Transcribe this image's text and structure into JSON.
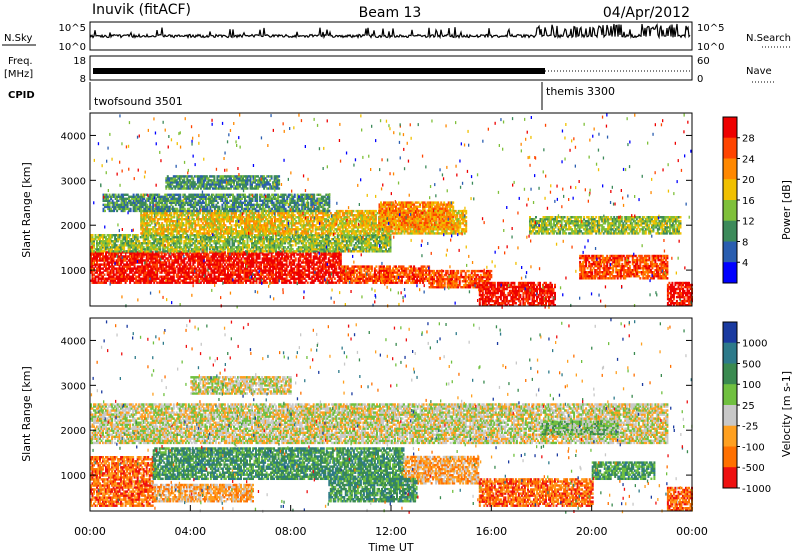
{
  "header": {
    "station": "Inuvik (fitACF)",
    "beam": "Beam 13",
    "date": "04/Apr/2012"
  },
  "noise_panel": {
    "left_label": "N.Sky",
    "right_label": "N.Search",
    "left_ticks": [
      "10^5",
      "10^0"
    ],
    "right_ticks": [
      "10^5",
      "10^0"
    ]
  },
  "freq_panel": {
    "left_label_line1": "Freq.",
    "left_label_line2": "[MHz]",
    "right_label": "Nave",
    "left_ticks": [
      "18",
      "8"
    ],
    "right_ticks": [
      "60",
      "0"
    ]
  },
  "cpid_panel": {
    "label": "CPID",
    "modes": [
      {
        "name": "twofsound 3501",
        "start_hour": 0
      },
      {
        "name": "themis 3300",
        "start_hour": 18
      }
    ]
  },
  "chart_data": [
    {
      "type": "heatmap",
      "name": "power",
      "xlabel": "",
      "ylabel": "Slant Range [km]",
      "xlim": [
        0,
        24
      ],
      "ylim": [
        200,
        4500
      ],
      "yticks": [
        "1000",
        "2000",
        "3000",
        "4000"
      ],
      "colorbar": {
        "label": "Power [dB]",
        "ticks": [
          "4",
          "8",
          "12",
          "16",
          "20",
          "24",
          "28"
        ],
        "colors": [
          "#0000ff",
          "#2a5eb0",
          "#3c8a5a",
          "#7fc03a",
          "#f0c000",
          "#ff8800",
          "#ff4400",
          "#ee0000"
        ]
      },
      "bands": [
        {
          "x0": 0.0,
          "x1": 10.0,
          "r0": 700,
          "r1": 1400,
          "level": 7
        },
        {
          "x0": 10.0,
          "x1": 13.5,
          "r0": 700,
          "r1": 1100,
          "level": 6
        },
        {
          "x0": 13.5,
          "x1": 16.0,
          "r0": 600,
          "r1": 1000,
          "level": 6
        },
        {
          "x0": 15.5,
          "x1": 18.5,
          "r0": 200,
          "r1": 700,
          "level": 7
        },
        {
          "x0": 19.5,
          "x1": 23.0,
          "r0": 800,
          "r1": 1300,
          "level": 6
        },
        {
          "x0": 23.0,
          "x1": 24.0,
          "r0": 200,
          "r1": 700,
          "level": 7
        },
        {
          "x0": 0.0,
          "x1": 12.0,
          "r0": 1400,
          "r1": 1800,
          "level": 3
        },
        {
          "x0": 2.0,
          "x1": 15.0,
          "r0": 1800,
          "r1": 2300,
          "level": 4
        },
        {
          "x0": 11.5,
          "x1": 14.5,
          "r0": 1900,
          "r1": 2500,
          "level": 5
        },
        {
          "x0": 17.5,
          "x1": 23.5,
          "r0": 1800,
          "r1": 2200,
          "level": 3
        },
        {
          "x0": 0.5,
          "x1": 9.5,
          "r0": 2300,
          "r1": 2700,
          "level": 2
        },
        {
          "x0": 3.0,
          "x1": 7.5,
          "r0": 2800,
          "r1": 3100,
          "level": 2
        }
      ]
    },
    {
      "type": "heatmap",
      "name": "velocity",
      "xlabel": "Time UT",
      "ylabel": "Slant Range [km]",
      "xlim": [
        0,
        24
      ],
      "ylim": [
        200,
        4500
      ],
      "xticks": [
        "00:00",
        "04:00",
        "08:00",
        "12:00",
        "16:00",
        "20:00",
        "00:00"
      ],
      "yticks": [
        "1000",
        "2000",
        "3000",
        "4000"
      ],
      "colorbar": {
        "label": "Velocity [m s-1]",
        "ticks": [
          "1000",
          "500",
          "100",
          "25",
          "-25",
          "-100",
          "-500",
          "-1000"
        ],
        "colors": [
          "#1a3aa0",
          "#2d7a8a",
          "#3a8a50",
          "#70c040",
          "#c8c8c8",
          "#ffa020",
          "#ff7000",
          "#ee1010"
        ]
      },
      "bands": [
        {
          "x0": 0.0,
          "x1": 2.5,
          "r0": 300,
          "r1": 1400,
          "level": 6
        },
        {
          "x0": 2.5,
          "x1": 12.5,
          "r0": 900,
          "r1": 1600,
          "level": 2
        },
        {
          "x0": 12.5,
          "x1": 15.5,
          "r0": 800,
          "r1": 1400,
          "level": 5
        },
        {
          "x0": 15.5,
          "x1": 20.0,
          "r0": 300,
          "r1": 900,
          "level": 6
        },
        {
          "x0": 20.0,
          "x1": 22.5,
          "r0": 900,
          "r1": 1300,
          "level": 2
        },
        {
          "x0": 23.0,
          "x1": 24.0,
          "r0": 200,
          "r1": 700,
          "level": 6
        },
        {
          "x0": 0.0,
          "x1": 23.0,
          "r0": 1700,
          "r1": 2600,
          "level": 4
        },
        {
          "x0": 2.5,
          "x1": 6.5,
          "r0": 400,
          "r1": 800,
          "level": 5
        },
        {
          "x0": 9.5,
          "x1": 13.0,
          "r0": 400,
          "r1": 900,
          "level": 2
        },
        {
          "x0": 4.0,
          "x1": 8.0,
          "r0": 2800,
          "r1": 3200,
          "level": 4
        },
        {
          "x0": 18.0,
          "x1": 21.0,
          "r0": 1900,
          "r1": 2200,
          "level": 3
        }
      ]
    }
  ]
}
